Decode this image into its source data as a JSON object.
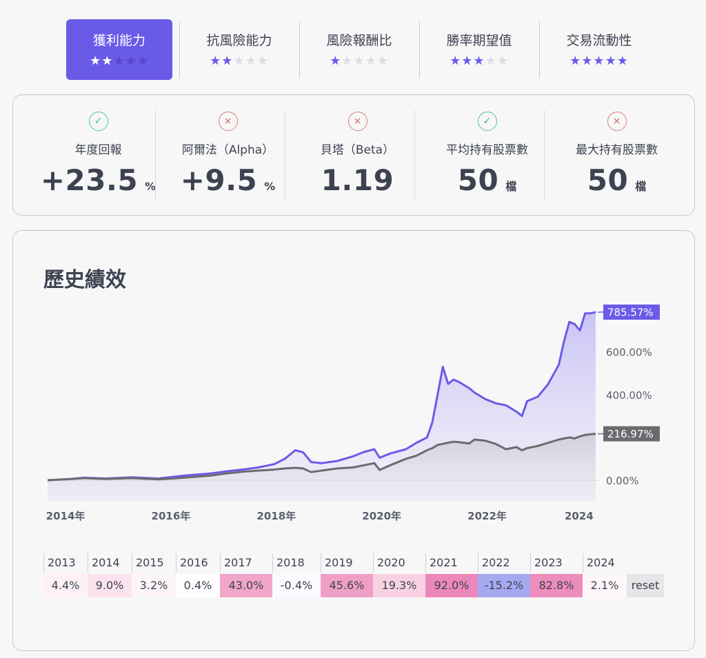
{
  "tabs": [
    {
      "label": "獲利能力",
      "stars": 2,
      "active": true
    },
    {
      "label": "抗風險能力",
      "stars": 2,
      "active": false
    },
    {
      "label": "風險報酬比",
      "stars": 1,
      "active": false
    },
    {
      "label": "勝率期望值",
      "stars": 3,
      "active": false
    },
    {
      "label": "交易流動性",
      "stars": 5,
      "active": false
    }
  ],
  "metrics": [
    {
      "status": "ok",
      "status_icon": "check-circle-icon",
      "label": "年度回報",
      "value": "+23.5",
      "unit": "%"
    },
    {
      "status": "bad",
      "status_icon": "x-circle-icon",
      "label": "阿爾法（Alpha）",
      "value": "+9.5",
      "unit": "%"
    },
    {
      "status": "bad",
      "status_icon": "x-circle-icon",
      "label": "貝塔（Beta）",
      "value": "1.19",
      "unit": ""
    },
    {
      "status": "ok",
      "status_icon": "check-circle-icon",
      "label": "平均持有股票數",
      "value": "50",
      "unit": "檔"
    },
    {
      "status": "bad",
      "status_icon": "x-circle-icon",
      "label": "最大持有股票數",
      "value": "50",
      "unit": "檔"
    }
  ],
  "history": {
    "title": "歷史績效"
  },
  "chart_data": {
    "type": "area",
    "title": "歷史績效",
    "xlabel": "",
    "ylabel": "",
    "x_ticks": [
      "2014年",
      "2016年",
      "2018年",
      "2020年",
      "2022年",
      "2024"
    ],
    "x_tick_values": [
      2014,
      2016,
      2018,
      2020,
      2022,
      2024
    ],
    "xlim": [
      2013.9,
      2024.3
    ],
    "y_ticks": [
      "0.00%",
      "400.00%",
      "600.00%"
    ],
    "y_tick_values": [
      0,
      400,
      600
    ],
    "ylim": [
      -30,
      840
    ],
    "grid": false,
    "legend": "none",
    "series": [
      {
        "color": "#6a5ae8",
        "end_label": "785.57%",
        "x": [
          2013.9,
          2014.3,
          2014.6,
          2015.0,
          2015.5,
          2016.0,
          2016.5,
          2017.0,
          2017.3,
          2017.6,
          2017.9,
          2018.2,
          2018.4,
          2018.6,
          2018.75,
          2018.9,
          2019.1,
          2019.4,
          2019.7,
          2019.9,
          2020.1,
          2020.2,
          2020.4,
          2020.7,
          2020.9,
          2021.1,
          2021.2,
          2021.3,
          2021.4,
          2021.5,
          2021.6,
          2021.7,
          2021.9,
          2022.0,
          2022.2,
          2022.4,
          2022.6,
          2022.8,
          2022.9,
          2023.0,
          2023.2,
          2023.4,
          2023.6,
          2023.7,
          2023.8,
          2023.9,
          2024.0,
          2024.1,
          2024.2,
          2024.3
        ],
        "values": [
          0,
          5,
          12,
          8,
          14,
          8,
          22,
          32,
          42,
          50,
          60,
          75,
          100,
          140,
          130,
          85,
          80,
          90,
          112,
          132,
          145,
          105,
          125,
          145,
          175,
          200,
          270,
          400,
          530,
          450,
          470,
          460,
          430,
          410,
          380,
          360,
          350,
          320,
          300,
          370,
          390,
          450,
          540,
          650,
          740,
          730,
          700,
          780,
          780,
          785.57
        ]
      },
      {
        "color": "#6b6b6f",
        "end_label": "216.97%",
        "x": [
          2013.9,
          2014.3,
          2014.6,
          2015.0,
          2015.5,
          2016.0,
          2016.5,
          2017.0,
          2017.3,
          2017.6,
          2017.9,
          2018.2,
          2018.4,
          2018.6,
          2018.75,
          2018.9,
          2019.1,
          2019.4,
          2019.7,
          2019.9,
          2020.1,
          2020.2,
          2020.4,
          2020.7,
          2020.9,
          2021.1,
          2021.2,
          2021.3,
          2021.4,
          2021.5,
          2021.6,
          2021.7,
          2021.9,
          2022.0,
          2022.2,
          2022.4,
          2022.6,
          2022.8,
          2022.9,
          2023.0,
          2023.2,
          2023.4,
          2023.6,
          2023.7,
          2023.8,
          2023.9,
          2024.0,
          2024.1,
          2024.2,
          2024.3
        ],
        "values": [
          0,
          5,
          10,
          6,
          10,
          4,
          12,
          22,
          32,
          40,
          45,
          50,
          55,
          58,
          55,
          38,
          45,
          55,
          60,
          70,
          80,
          48,
          70,
          100,
          115,
          140,
          150,
          165,
          170,
          175,
          180,
          178,
          172,
          190,
          185,
          170,
          145,
          155,
          140,
          150,
          160,
          175,
          190,
          195,
          200,
          195,
          205,
          212,
          215,
          216.97
        ]
      }
    ]
  },
  "years": [
    {
      "year": "2013",
      "value": "4.4%",
      "color": "#fdf1f6"
    },
    {
      "year": "2014",
      "value": "9.0%",
      "color": "#fbe3ee"
    },
    {
      "year": "2015",
      "value": "3.2%",
      "color": "#fdf4f8"
    },
    {
      "year": "2016",
      "value": "0.4%",
      "color": "#fefcfd"
    },
    {
      "year": "2017",
      "value": "43.0%",
      "color": "#f0a5c9"
    },
    {
      "year": "2018",
      "value": "-0.4%",
      "color": "#fafaff"
    },
    {
      "year": "2019",
      "value": "45.6%",
      "color": "#ef9fc6"
    },
    {
      "year": "2020",
      "value": "19.3%",
      "color": "#f8d2e3"
    },
    {
      "year": "2021",
      "value": "92.0%",
      "color": "#ec88b9"
    },
    {
      "year": "2022",
      "value": "-15.2%",
      "color": "#a6a8f0"
    },
    {
      "year": "2023",
      "value": "82.8%",
      "color": "#ed8dbc"
    },
    {
      "year": "2024",
      "value": "2.1%",
      "color": "#fef7fa"
    }
  ],
  "reset_label": "reset",
  "colors": {
    "accent": "#6a5ae8",
    "star_empty": "#dcdce2",
    "benchmark": "#6b6b6f"
  }
}
